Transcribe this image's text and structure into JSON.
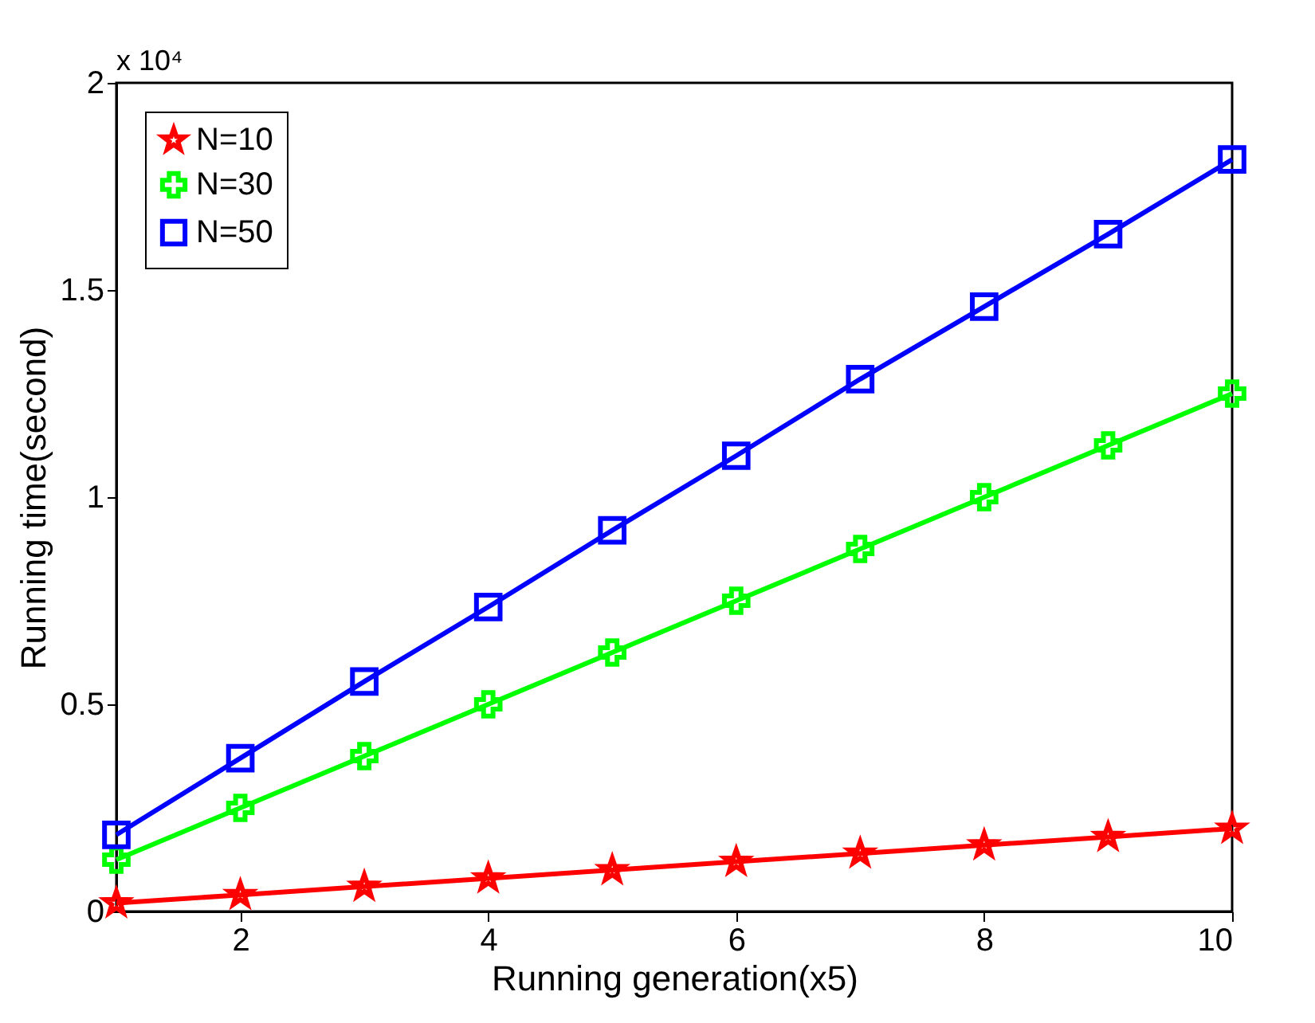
{
  "chart_data": {
    "type": "line",
    "xlabel": "Running generation(x5)",
    "ylabel": "Running time(second)",
    "x": [
      1,
      2,
      3,
      4,
      5,
      6,
      7,
      8,
      9,
      10
    ],
    "series": [
      {
        "name": "N=10",
        "color": "#ff0000",
        "marker": "star",
        "values": [
          0.02,
          0.04,
          0.06,
          0.08,
          0.1,
          0.12,
          0.14,
          0.16,
          0.18,
          0.2
        ]
      },
      {
        "name": "N=30",
        "color": "#00ff00",
        "marker": "cross",
        "values": [
          0.125,
          0.25,
          0.375,
          0.5,
          0.625,
          0.75,
          0.875,
          1.0,
          1.125,
          1.25
        ]
      },
      {
        "name": "N=50",
        "color": "#0000ff",
        "marker": "square",
        "values": [
          0.185,
          0.37,
          0.555,
          0.735,
          0.92,
          1.1,
          1.285,
          1.46,
          1.635,
          1.815
        ]
      }
    ],
    "xlim": [
      1,
      10
    ],
    "xticks": [
      2,
      4,
      6,
      8,
      10
    ],
    "ylim": [
      0,
      2
    ],
    "yticks": [
      0,
      0.5,
      1,
      1.5,
      2
    ],
    "annotations": [
      "x 10⁴"
    ],
    "grid": false,
    "legend": "top left",
    "line_style": "solid"
  }
}
